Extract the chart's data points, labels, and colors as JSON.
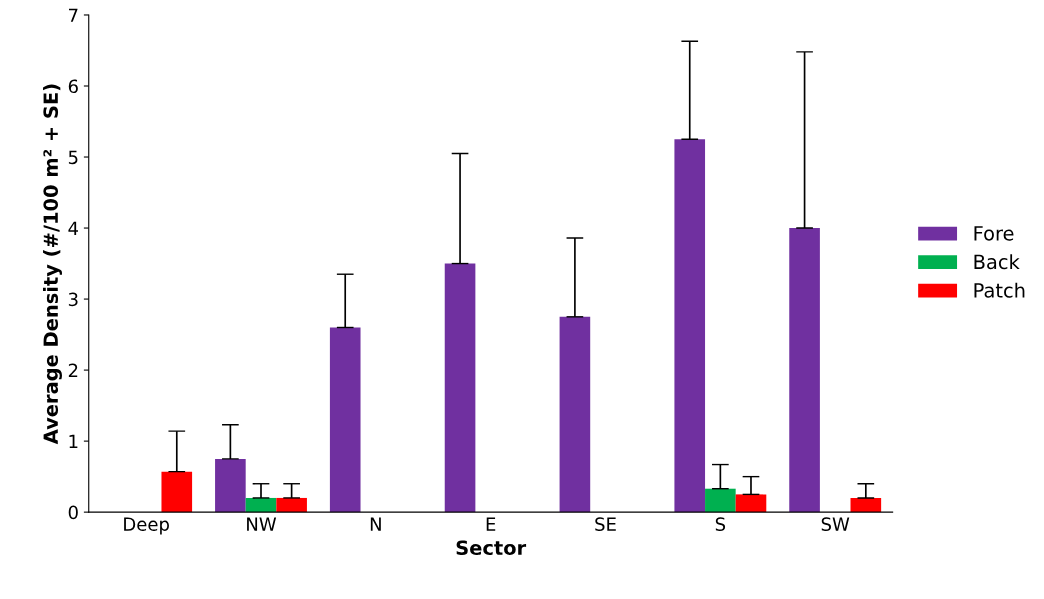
{
  "chart_data": {
    "type": "bar",
    "xlabel": "Sector",
    "ylabel": "Average Density (#/100 m² + SE)",
    "categories": [
      "Deep",
      "NW",
      "N",
      "E",
      "SE",
      "S",
      "SW"
    ],
    "series": [
      {
        "name": "Fore",
        "color": "#7030a0",
        "values": [
          0,
          0.75,
          2.6,
          3.5,
          2.75,
          5.25,
          4.0
        ],
        "errors": [
          null,
          [
            0.75,
            1.23
          ],
          [
            2.6,
            3.35
          ],
          [
            3.5,
            5.05
          ],
          [
            2.75,
            3.86
          ],
          [
            5.25,
            6.63
          ],
          [
            4.0,
            6.48
          ]
        ]
      },
      {
        "name": "Back",
        "color": "#00b050",
        "values": [
          0,
          0.2,
          0,
          0,
          0,
          0.33,
          0
        ],
        "errors": [
          null,
          [
            0.2,
            0.4
          ],
          null,
          null,
          null,
          [
            0.33,
            0.67
          ],
          null
        ]
      },
      {
        "name": "Patch",
        "color": "#ff0000",
        "values": [
          0.57,
          0.2,
          0,
          0,
          0,
          0.25,
          0.2
        ],
        "errors": [
          [
            0.57,
            1.14
          ],
          [
            0.2,
            0.4
          ],
          null,
          null,
          null,
          [
            0.25,
            0.5
          ],
          [
            0.2,
            0.4
          ]
        ]
      }
    ],
    "ylim": [
      0,
      7
    ],
    "yticks": [
      0,
      1,
      2,
      3,
      4,
      5,
      6,
      7
    ],
    "grid": false,
    "legend": "right"
  }
}
